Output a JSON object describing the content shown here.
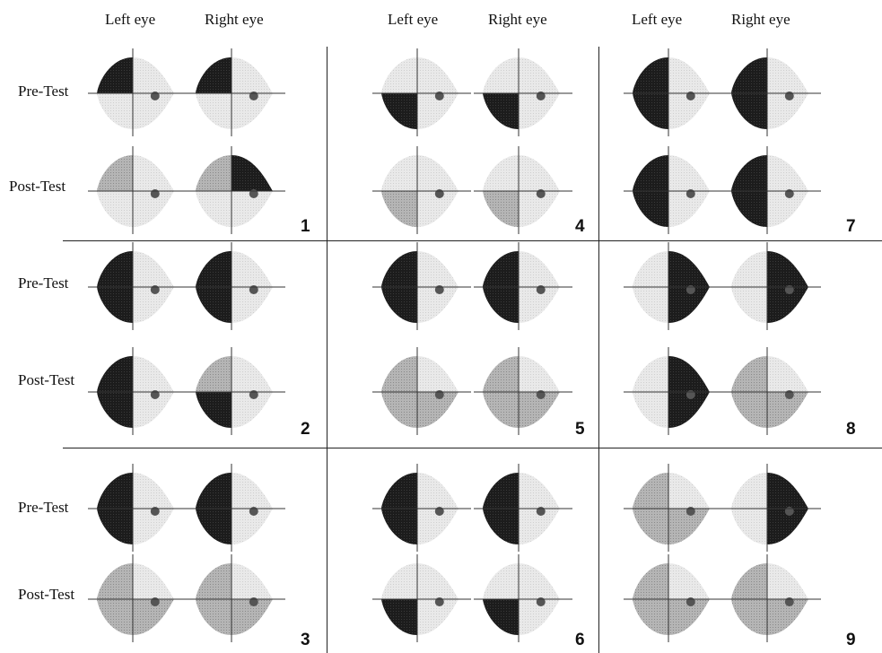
{
  "column_headers": [
    {
      "left": "Left eye",
      "right": "Right eye"
    },
    {
      "left": "Left eye",
      "right": "Right eye"
    },
    {
      "left": "Left eye",
      "right": "Right eye"
    }
  ],
  "row_labels": {
    "pre": "Pre-Test",
    "post": "Post-Test"
  },
  "panels": [
    {
      "id": "1",
      "pre": {
        "left": "upper-left dark",
        "right": "upper-left dark"
      },
      "post": {
        "left": "small dark patches",
        "right": "upper dark patch"
      }
    },
    {
      "id": "2",
      "pre": {
        "left": "left half dark",
        "right": "left half dark"
      },
      "post": {
        "left": "left half dark",
        "right": "partial left dark"
      }
    },
    {
      "id": "3",
      "pre": {
        "left": "left half dark",
        "right": "left half dark"
      },
      "post": {
        "left": "mixed gray",
        "right": "mixed gray"
      }
    },
    {
      "id": "4",
      "pre": {
        "left": "lower-left dark",
        "right": "lower-left dark"
      },
      "post": {
        "left": "mild gray",
        "right": "mild gray"
      }
    },
    {
      "id": "5",
      "pre": {
        "left": "left half dark",
        "right": "left half dark"
      },
      "post": {
        "left": "mixed gray",
        "right": "mixed gray"
      }
    },
    {
      "id": "6",
      "pre": {
        "left": "left half dark",
        "right": "left half dark"
      },
      "post": {
        "left": "lower-left dark",
        "right": "lower-left dark"
      }
    },
    {
      "id": "7",
      "pre": {
        "left": "left half dark",
        "right": "left half dark"
      },
      "post": {
        "left": "left half dark",
        "right": "left half dark"
      }
    },
    {
      "id": "8",
      "pre": {
        "left": "right half dark",
        "right": "right half dark"
      },
      "post": {
        "left": "right half dark",
        "right": "mixed gray"
      }
    },
    {
      "id": "9",
      "pre": {
        "left": "mixed gray",
        "right": "right half dark"
      },
      "post": {
        "left": "mixed gray",
        "right": "mixed gray"
      }
    }
  ],
  "colors": {
    "background": "#ffffff",
    "field_light": "#e6e6e6",
    "field_mid": "#a8a8a8",
    "field_dark": "#1a1a1a",
    "grid_line": "#222222"
  }
}
